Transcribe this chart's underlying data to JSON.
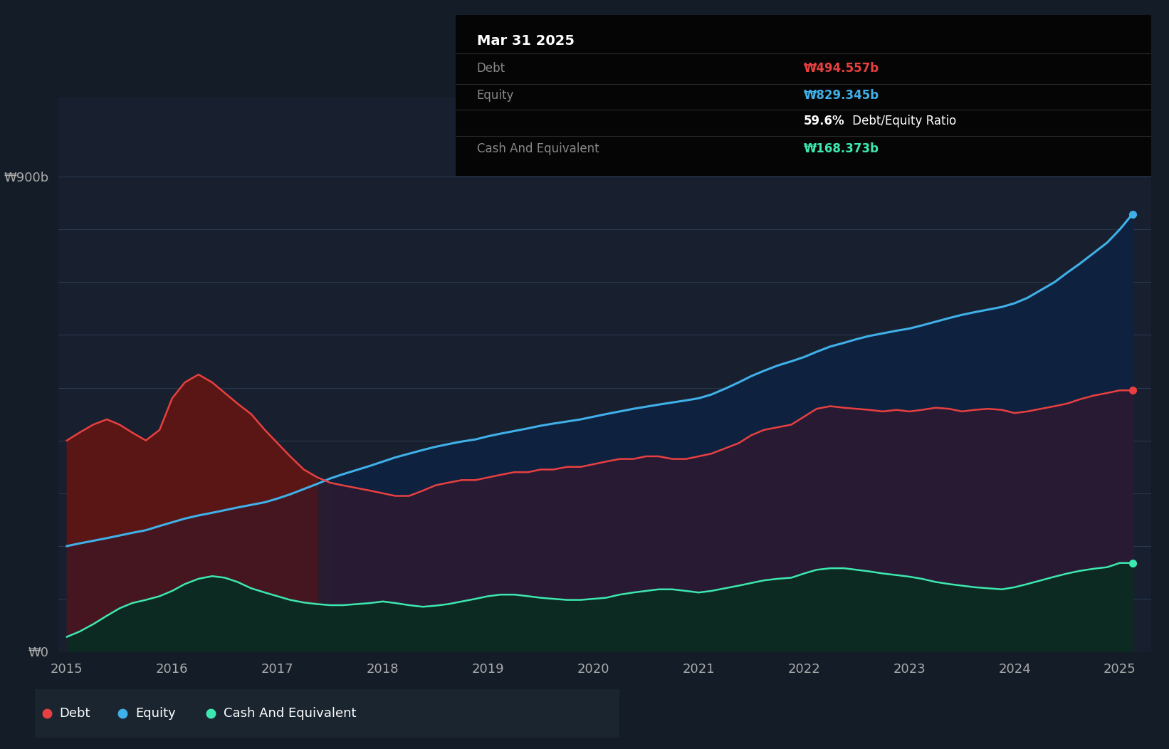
{
  "bg_color": "#131c27",
  "plot_bg_color": "#182030",
  "grid_color": "#2a3a50",
  "debt_color": "#e84040",
  "equity_color": "#40b0e8",
  "cash_color": "#3de8b0",
  "ylim_max": 1050,
  "ylabel_900": "₩900b",
  "ylabel_0": "₩0",
  "xticks": [
    2015,
    2016,
    2017,
    2018,
    2019,
    2020,
    2021,
    2022,
    2023,
    2024,
    2025
  ],
  "tooltip": {
    "date": "Mar 31 2025",
    "debt_label": "Debt",
    "debt_value": "₩494.557b",
    "equity_label": "Equity",
    "equity_value": "₩829.345b",
    "ratio_text": "59.6%",
    "ratio_label": " Debt/Equity Ratio",
    "cash_label": "Cash And Equivalent",
    "cash_value": "₩168.373b"
  },
  "legend": [
    {
      "label": "Debt",
      "color": "#e84040"
    },
    {
      "label": "Equity",
      "color": "#40b0e8"
    },
    {
      "label": "Cash And Equivalent",
      "color": "#3de8b0"
    }
  ],
  "time": [
    2015.0,
    2015.12,
    2015.25,
    2015.38,
    2015.5,
    2015.62,
    2015.75,
    2015.88,
    2016.0,
    2016.12,
    2016.25,
    2016.38,
    2016.5,
    2016.62,
    2016.75,
    2016.88,
    2017.0,
    2017.12,
    2017.25,
    2017.38,
    2017.5,
    2017.62,
    2017.75,
    2017.88,
    2018.0,
    2018.12,
    2018.25,
    2018.38,
    2018.5,
    2018.62,
    2018.75,
    2018.88,
    2019.0,
    2019.12,
    2019.25,
    2019.38,
    2019.5,
    2019.62,
    2019.75,
    2019.88,
    2020.0,
    2020.12,
    2020.25,
    2020.38,
    2020.5,
    2020.62,
    2020.75,
    2020.88,
    2021.0,
    2021.12,
    2021.25,
    2021.38,
    2021.5,
    2021.62,
    2021.75,
    2021.88,
    2022.0,
    2022.12,
    2022.25,
    2022.38,
    2022.5,
    2022.62,
    2022.75,
    2022.88,
    2023.0,
    2023.12,
    2023.25,
    2023.38,
    2023.5,
    2023.62,
    2023.75,
    2023.88,
    2024.0,
    2024.12,
    2024.25,
    2024.38,
    2024.5,
    2024.62,
    2024.75,
    2024.88,
    2025.0,
    2025.12
  ],
  "debt": [
    400,
    415,
    430,
    440,
    430,
    415,
    400,
    420,
    480,
    510,
    525,
    510,
    490,
    470,
    450,
    420,
    395,
    370,
    345,
    330,
    320,
    315,
    310,
    305,
    300,
    295,
    295,
    305,
    315,
    320,
    325,
    325,
    330,
    335,
    340,
    340,
    345,
    345,
    350,
    350,
    355,
    360,
    365,
    365,
    370,
    370,
    365,
    365,
    370,
    375,
    385,
    395,
    410,
    420,
    425,
    430,
    445,
    460,
    465,
    462,
    460,
    458,
    455,
    458,
    455,
    458,
    462,
    460,
    455,
    458,
    460,
    458,
    452,
    455,
    460,
    465,
    470,
    478,
    485,
    490,
    495,
    495
  ],
  "equity": [
    200,
    205,
    210,
    215,
    220,
    225,
    230,
    238,
    245,
    252,
    258,
    263,
    268,
    273,
    278,
    283,
    290,
    298,
    308,
    318,
    328,
    336,
    344,
    352,
    360,
    368,
    375,
    382,
    388,
    393,
    398,
    402,
    408,
    413,
    418,
    423,
    428,
    432,
    436,
    440,
    445,
    450,
    455,
    460,
    464,
    468,
    472,
    476,
    480,
    487,
    498,
    510,
    522,
    532,
    542,
    550,
    558,
    568,
    578,
    585,
    592,
    598,
    603,
    608,
    612,
    618,
    625,
    632,
    638,
    643,
    648,
    653,
    660,
    670,
    685,
    700,
    718,
    735,
    755,
    775,
    800,
    829
  ],
  "cash": [
    28,
    38,
    52,
    68,
    82,
    92,
    98,
    105,
    115,
    128,
    138,
    143,
    140,
    132,
    120,
    112,
    105,
    98,
    93,
    90,
    88,
    88,
    90,
    92,
    95,
    92,
    88,
    85,
    87,
    90,
    95,
    100,
    105,
    108,
    108,
    105,
    102,
    100,
    98,
    98,
    100,
    102,
    108,
    112,
    115,
    118,
    118,
    115,
    112,
    115,
    120,
    125,
    130,
    135,
    138,
    140,
    148,
    155,
    158,
    158,
    155,
    152,
    148,
    145,
    142,
    138,
    132,
    128,
    125,
    122,
    120,
    118,
    122,
    128,
    135,
    142,
    148,
    153,
    157,
    160,
    168,
    168
  ]
}
